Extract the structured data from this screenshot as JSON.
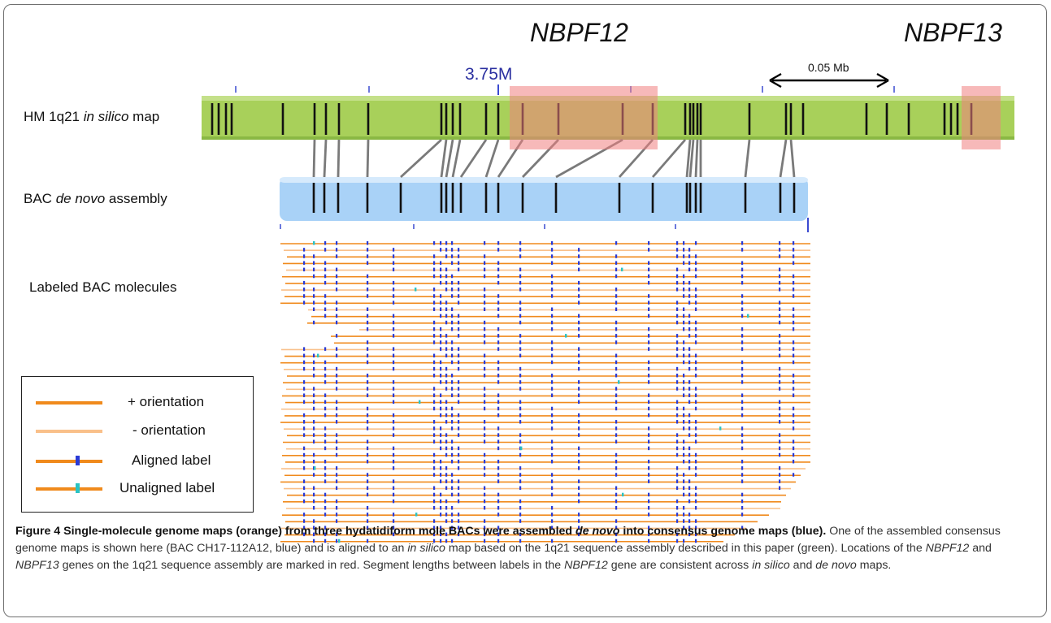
{
  "genes": {
    "left": "NBPF12",
    "right": "NBPF13"
  },
  "scale": {
    "tick_label": "3.75M",
    "bar_label": "0.05 Mb"
  },
  "rows": {
    "silico": {
      "pre": "HM 1q21 ",
      "ital": "in silico",
      "post": " map"
    },
    "denovo": {
      "pre": "BAC ",
      "ital": "de novo",
      "post": " assembly"
    },
    "molecules": "Labeled BAC molecules"
  },
  "legend": {
    "plus": "+ orientation",
    "minus": "- orientation",
    "aligned": "Aligned label",
    "unaligned": "Unaligned label"
  },
  "colors": {
    "silico_map": "#a8d05a",
    "denovo_map": "#a9d2f7",
    "gene_highlight": "#f08080",
    "plus_orientation": "#f08a1c",
    "minus_orientation": "#f9c08a",
    "aligned_label": "#2a3bd6",
    "unaligned_label": "#2bc3c3"
  },
  "caption": {
    "title_a": "Figure 4 Single-molecule genome maps (orange) from three hydatidiform mole BACs were assembled ",
    "title_ital": "de novo",
    "title_b": " into consensus genome maps (blue).",
    "t1": " One of the assembled consensus genome maps is shown here (BAC CH17-112A12, blue) and is aligned to an ",
    "t1_ital": "in silico",
    "t2": " map based on the 1q21 sequence assembly described in this paper (green). Locations of the ",
    "t2_ital": "NBPF12",
    "t3": " and ",
    "t3_ital": "NBPF13",
    "t4": " genes on the 1q21 sequence assembly are marked in red. Segment lengths between labels in the ",
    "t4_ital": "NBPF12",
    "t5": " gene are consistent across ",
    "t5_ital": "in silico",
    "t6": " and ",
    "t6_ital": "de novo",
    "t7": " maps."
  }
}
